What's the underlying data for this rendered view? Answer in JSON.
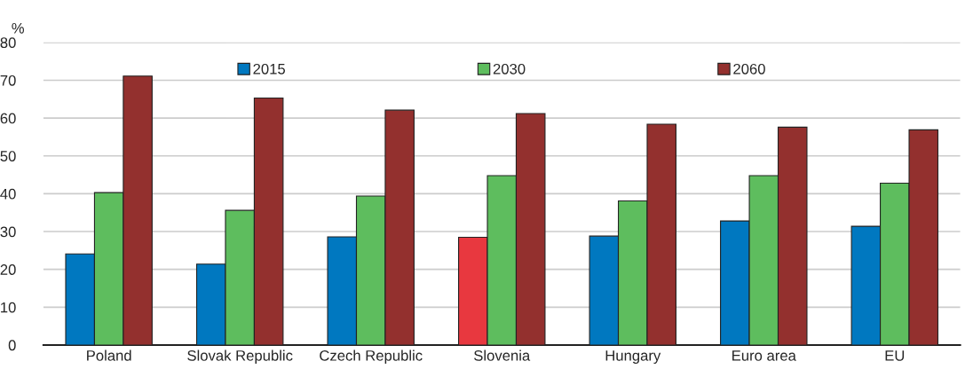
{
  "chart_data": {
    "type": "bar",
    "ylabel": "%",
    "categories": [
      "Poland",
      "Slovak Republic",
      "Czech Republic",
      "Slovenia",
      "Hungary",
      "Euro area",
      "EU"
    ],
    "series": [
      {
        "name": "2015",
        "color": "#0078c0",
        "colors": [
          "#0078c0",
          "#0078c0",
          "#0078c0",
          "#e8383f",
          "#0078c0",
          "#0078c0",
          "#0078c0"
        ],
        "values": [
          24.1,
          21.4,
          28.6,
          28.5,
          28.8,
          32.8,
          31.4
        ]
      },
      {
        "name": "2030",
        "color": "#5ebd5e",
        "values": [
          40.3,
          35.6,
          39.4,
          44.8,
          38.1,
          44.8,
          42.8
        ]
      },
      {
        "name": "2060",
        "color": "#93302e",
        "values": [
          71.1,
          65.3,
          62.1,
          61.2,
          58.4,
          57.6,
          56.9
        ]
      }
    ],
    "ylim": [
      0,
      80
    ],
    "yticks": [
      0,
      10,
      20,
      30,
      40,
      50,
      60,
      70,
      80
    ],
    "grid": "y",
    "legend": "top"
  }
}
